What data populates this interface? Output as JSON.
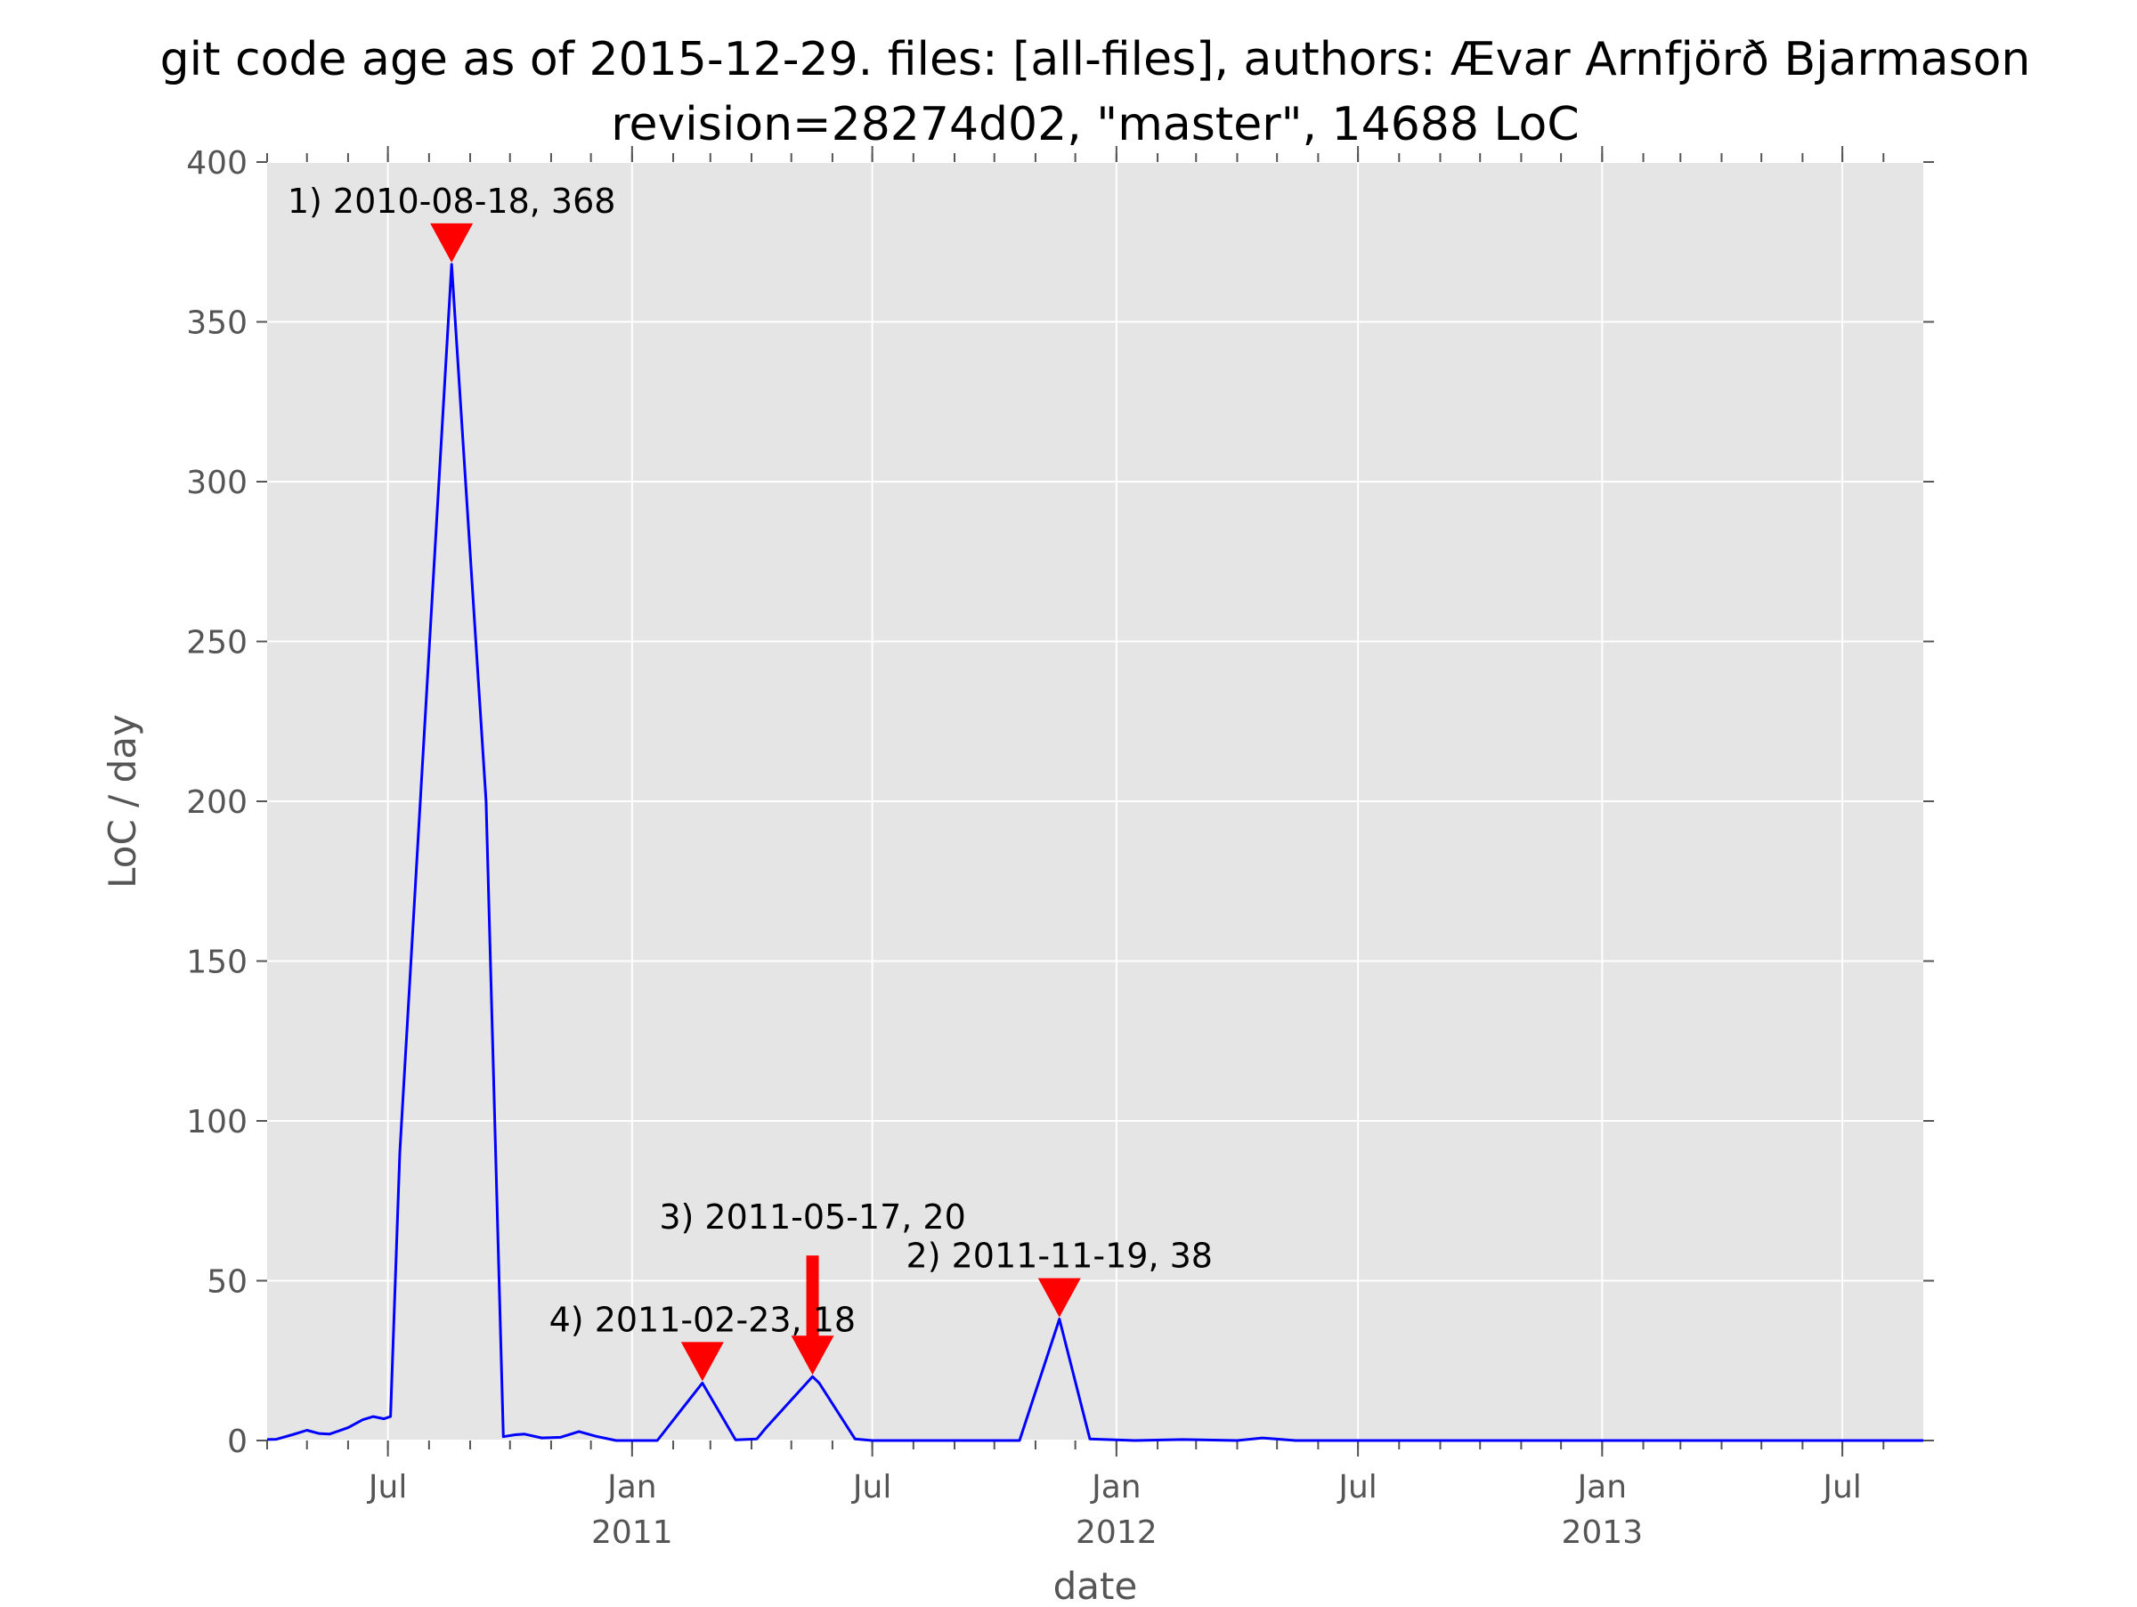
{
  "chart_data": {
    "type": "line",
    "title_lines": [
      "git code age as of 2015-12-29. files: [all-files], authors: Ævar Arnfjörð Bjarmason",
      "revision=28274d02, \"master\", 14688 LoC"
    ],
    "xlabel": "date",
    "ylabel": "LoC / day",
    "xlim": [
      "2010-04-01",
      "2013-08-31"
    ],
    "ylim": [
      0,
      400
    ],
    "grid": true,
    "legend": "none",
    "y_ticks": [
      0,
      50,
      100,
      150,
      200,
      250,
      300,
      350,
      400
    ],
    "x_ticks": [
      {
        "date": "2010-07-01",
        "label": "Jul",
        "sublabel": ""
      },
      {
        "date": "2011-01-01",
        "label": "Jan",
        "sublabel": "2011"
      },
      {
        "date": "2011-07-01",
        "label": "Jul",
        "sublabel": ""
      },
      {
        "date": "2012-01-01",
        "label": "Jan",
        "sublabel": "2012"
      },
      {
        "date": "2012-07-01",
        "label": "Jul",
        "sublabel": ""
      },
      {
        "date": "2013-01-01",
        "label": "Jan",
        "sublabel": "2013"
      },
      {
        "date": "2013-07-01",
        "label": "Jul",
        "sublabel": ""
      }
    ],
    "series": [
      {
        "color": "#0000ff",
        "points": [
          [
            "2010-04-01",
            0.3
          ],
          [
            "2010-04-08",
            0.4
          ],
          [
            "2010-04-20",
            1.8
          ],
          [
            "2010-05-01",
            3.2
          ],
          [
            "2010-05-10",
            2.2
          ],
          [
            "2010-05-18",
            2.0
          ],
          [
            "2010-06-01",
            4.0
          ],
          [
            "2010-06-12",
            6.5
          ],
          [
            "2010-06-20",
            7.5
          ],
          [
            "2010-06-28",
            6.8
          ],
          [
            "2010-07-03",
            7.5
          ],
          [
            "2010-07-10",
            90.0
          ],
          [
            "2010-08-18",
            368.0
          ],
          [
            "2010-09-13",
            200.0
          ],
          [
            "2010-09-26",
            1.2
          ],
          [
            "2010-10-05",
            1.8
          ],
          [
            "2010-10-12",
            2.0
          ],
          [
            "2010-10-25",
            0.8
          ],
          [
            "2010-11-08",
            1.0
          ],
          [
            "2010-11-22",
            2.8
          ],
          [
            "2010-12-05",
            1.3
          ],
          [
            "2010-12-20",
            0.0
          ],
          [
            "2011-01-20",
            0.0
          ],
          [
            "2011-02-23",
            18.0
          ],
          [
            "2011-03-20",
            0.2
          ],
          [
            "2011-04-05",
            0.5
          ],
          [
            "2011-04-12",
            4.0
          ],
          [
            "2011-05-17",
            20.0
          ],
          [
            "2011-05-22",
            18.0
          ],
          [
            "2011-06-18",
            0.5
          ],
          [
            "2011-07-01",
            0.0
          ],
          [
            "2011-10-20",
            0.0
          ],
          [
            "2011-11-19",
            38.0
          ],
          [
            "2011-12-12",
            0.5
          ],
          [
            "2012-01-15",
            0.0
          ],
          [
            "2012-02-20",
            0.3
          ],
          [
            "2012-04-01",
            0.0
          ],
          [
            "2012-04-20",
            0.8
          ],
          [
            "2012-05-15",
            0.0
          ],
          [
            "2013-08-31",
            0.0
          ]
        ]
      }
    ],
    "annotations": [
      {
        "label": "1) 2010-08-18, 368",
        "date": "2010-08-18",
        "value": 368
      },
      {
        "label": "2) 2011-11-19, 38",
        "date": "2011-11-19",
        "value": 38
      },
      {
        "label": "3) 2011-05-17, 20",
        "date": "2011-05-17",
        "value": 20
      },
      {
        "label": "4) 2011-02-23, 18",
        "date": "2011-02-23",
        "value": 18
      }
    ]
  }
}
